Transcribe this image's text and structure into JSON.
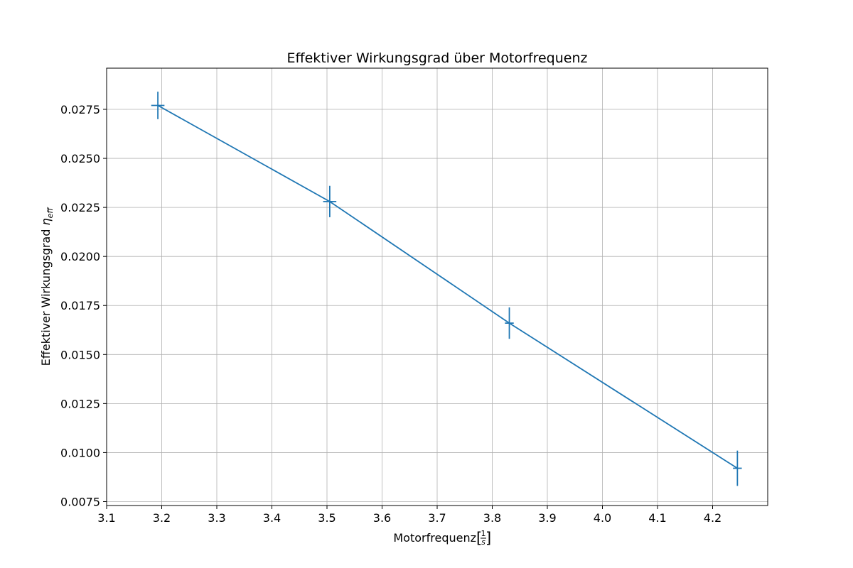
{
  "chart_data": {
    "type": "line",
    "title": "Effektiver Wirkungsgrad über Motorfrequenz",
    "xlabel": {
      "text": "Motorfrequenz",
      "unit_numerator": "1",
      "unit_denominator": "s"
    },
    "ylabel": {
      "text": "Effektiver Wirkungsgrad",
      "symbol": "η",
      "subscript": "eff"
    },
    "xlim": [
      3.1,
      4.3
    ],
    "ylim": [
      0.0073,
      0.0296
    ],
    "xticks": [
      3.1,
      3.2,
      3.3,
      3.4,
      3.5,
      3.6,
      3.7,
      3.8,
      3.9,
      4.0,
      4.1,
      4.2
    ],
    "xtick_labels": [
      "3.1",
      "3.2",
      "3.3",
      "3.4",
      "3.5",
      "3.6",
      "3.7",
      "3.8",
      "3.9",
      "4.0",
      "4.1",
      "4.2"
    ],
    "yticks": [
      0.0075,
      0.01,
      0.0125,
      0.015,
      0.0175,
      0.02,
      0.0225,
      0.025,
      0.0275
    ],
    "ytick_labels": [
      "0.0075",
      "0.0100",
      "0.0125",
      "0.0150",
      "0.0175",
      "0.0200",
      "0.0225",
      "0.0250",
      "0.0275"
    ],
    "grid": true,
    "series": [
      {
        "color": "#1f77b4",
        "x": [
          3.193,
          3.505,
          3.831,
          4.245
        ],
        "y": [
          0.0277,
          0.0228,
          0.0166,
          0.0092
        ],
        "xerr": [
          0.012,
          0.012,
          0.008,
          0.008
        ],
        "yerr": [
          0.0007,
          0.0008,
          0.0008,
          0.0009
        ]
      }
    ]
  }
}
